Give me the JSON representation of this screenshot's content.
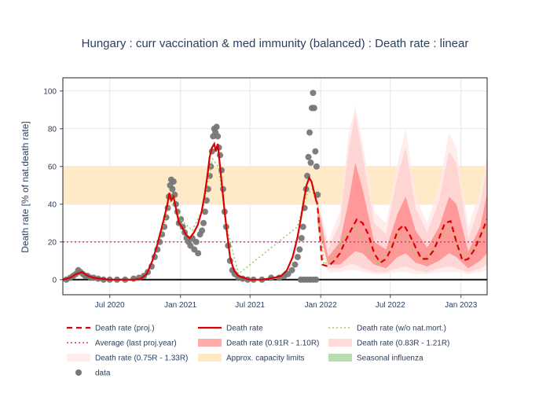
{
  "chart_data": {
    "type": "line",
    "title": "Hungary : curr vaccination & med immunity (balanced) : Death rate : linear",
    "ylabel": "Death rate [% of nat.death rate]",
    "xlabel": "",
    "ylim": [
      -8,
      107
    ],
    "xlim": [
      "2020-03-01",
      "2023-03-10"
    ],
    "y_ticks": [
      0,
      20,
      40,
      60,
      80,
      100
    ],
    "x_ticks": [
      {
        "date": "2020-07-01",
        "label": "Jul 2020"
      },
      {
        "date": "2021-01-01",
        "label": "Jan 2021"
      },
      {
        "date": "2021-07-01",
        "label": "Jul 2021"
      },
      {
        "date": "2022-01-01",
        "label": "Jan 2022"
      },
      {
        "date": "2022-07-01",
        "label": "Jul 2022"
      },
      {
        "date": "2023-01-01",
        "label": "Jan 2023"
      }
    ],
    "grid": true,
    "legend_position": "bottom",
    "capacity_band": [
      40,
      60
    ],
    "average_last_proj_year": 20,
    "colors": {
      "proj": "#dd0000",
      "death_rate": "#dd0000",
      "wo_natmort": "#99cc66",
      "average": "#dd3377",
      "band_inner": "#ff6666",
      "band_mid": "#ffcccc",
      "band_outer": "#ffe8e8",
      "capacity": "#ffe8c2",
      "influenza": "#b9ddb0",
      "data": "#777777"
    },
    "series": [
      {
        "name": "Death rate",
        "type": "line",
        "x": [
          "2020-03-01",
          "2020-03-20",
          "2020-04-05",
          "2020-04-20",
          "2020-05-05",
          "2020-05-20",
          "2020-06-10",
          "2020-07-01",
          "2020-08-01",
          "2020-09-01",
          "2020-09-20",
          "2020-10-05",
          "2020-10-20",
          "2020-11-01",
          "2020-11-10",
          "2020-11-20",
          "2020-11-28",
          "2020-12-03",
          "2020-12-08",
          "2020-12-14",
          "2020-12-20",
          "2020-12-28",
          "2021-01-05",
          "2021-01-15",
          "2021-01-25",
          "2021-02-05",
          "2021-02-15",
          "2021-02-25",
          "2021-03-05",
          "2021-03-12",
          "2021-03-18",
          "2021-03-24",
          "2021-03-30",
          "2021-04-03",
          "2021-04-08",
          "2021-04-12",
          "2021-04-18",
          "2021-04-25",
          "2021-05-02",
          "2021-05-10",
          "2021-05-20",
          "2021-06-01",
          "2021-06-15",
          "2021-07-01",
          "2021-08-01",
          "2021-09-01",
          "2021-09-20",
          "2021-10-05",
          "2021-10-20",
          "2021-11-01",
          "2021-11-10",
          "2021-11-18",
          "2021-11-25",
          "2021-12-02",
          "2021-12-08",
          "2021-12-14",
          "2021-12-20",
          "2021-12-24"
        ],
        "y": [
          0,
          1,
          3,
          4,
          2,
          1,
          0.5,
          0,
          0,
          0,
          0.5,
          3,
          10,
          18,
          25,
          33,
          40,
          46,
          42,
          44,
          38,
          30,
          28,
          24,
          22,
          25,
          29,
          36,
          45,
          55,
          65,
          70,
          72,
          68,
          72,
          64,
          52,
          38,
          25,
          12,
          5,
          2,
          1,
          0,
          0,
          1,
          2,
          5,
          12,
          22,
          32,
          42,
          50,
          54,
          52,
          47,
          42,
          40
        ]
      },
      {
        "name": "Death rate (proj.)",
        "type": "dashed",
        "x": [
          "2021-12-24",
          "2022-01-05",
          "2022-01-20",
          "2022-02-05",
          "2022-02-20",
          "2022-03-05",
          "2022-03-20",
          "2022-04-05",
          "2022-04-20",
          "2022-05-05",
          "2022-05-20",
          "2022-06-05",
          "2022-06-20",
          "2022-07-05",
          "2022-07-20",
          "2022-08-05",
          "2022-08-20",
          "2022-09-05",
          "2022-09-20",
          "2022-10-05",
          "2022-10-20",
          "2022-11-05",
          "2022-11-20",
          "2022-12-05",
          "2022-12-20",
          "2023-01-05",
          "2023-01-20",
          "2023-02-05",
          "2023-02-20",
          "2023-03-10"
        ],
        "y": [
          38,
          8,
          7,
          10,
          14,
          20,
          26,
          32,
          30,
          24,
          14,
          9,
          11,
          17,
          26,
          29,
          24,
          17,
          11,
          11,
          15,
          22,
          30,
          31,
          20,
          10,
          11,
          16,
          23,
          32
        ]
      },
      {
        "name": "Death rate (w/o nat.mort.)",
        "type": "dotted",
        "x": [
          "2020-11-10",
          "2020-12-01",
          "2020-12-15",
          "2021-01-01",
          "2021-02-01",
          "2021-03-01",
          "2021-03-25",
          "2021-04-10",
          "2021-05-01",
          "2021-06-01",
          "2021-11-01",
          "2021-11-25",
          "2021-12-10",
          "2021-12-24",
          "2022-01-10",
          "2022-02-01",
          "2022-03-01",
          "2022-04-01",
          "2022-05-01",
          "2022-06-01",
          "2022-07-01",
          "2022-08-01",
          "2022-09-01",
          "2022-10-01",
          "2022-11-01",
          "2022-12-01",
          "2023-01-01",
          "2023-02-01",
          "2023-03-10"
        ],
        "y": [
          22,
          38,
          40,
          32,
          26,
          38,
          64,
          60,
          28,
          3,
          28,
          45,
          48,
          38,
          8,
          12,
          22,
          28,
          16,
          8,
          18,
          24,
          14,
          10,
          20,
          28,
          12,
          16,
          28
        ]
      },
      {
        "name": "Average (last proj.year)",
        "type": "dotted",
        "x": [
          "2020-03-01",
          "2023-03-10"
        ],
        "y": [
          20,
          20
        ]
      },
      {
        "name": "Death rate (0.91R - 1.10R)",
        "type": "band",
        "x": [
          "2021-12-24",
          "2022-01-20",
          "2022-02-20",
          "2022-03-15",
          "2022-04-01",
          "2022-04-20",
          "2022-05-20",
          "2022-06-20",
          "2022-07-20",
          "2022-08-10",
          "2022-09-05",
          "2022-10-05",
          "2022-11-05",
          "2022-12-01",
          "2022-12-20",
          "2023-01-20",
          "2023-02-20",
          "2023-03-10"
        ],
        "low": [
          30,
          8,
          8,
          12,
          15,
          14,
          8,
          6,
          12,
          14,
          9,
          7,
          10,
          14,
          12,
          6,
          10,
          14
        ],
        "high": [
          40,
          12,
          20,
          42,
          62,
          48,
          20,
          16,
          35,
          44,
          26,
          17,
          28,
          44,
          40,
          15,
          28,
          46
        ]
      },
      {
        "name": "Death rate (0.83R - 1.21R)",
        "type": "band",
        "x": [
          "2021-12-24",
          "2022-01-20",
          "2022-02-20",
          "2022-03-15",
          "2022-04-01",
          "2022-04-20",
          "2022-05-20",
          "2022-06-20",
          "2022-07-20",
          "2022-08-10",
          "2022-09-05",
          "2022-10-05",
          "2022-11-05",
          "2022-12-01",
          "2022-12-20",
          "2023-01-20",
          "2023-02-20",
          "2023-03-10"
        ],
        "low": [
          28,
          6,
          6,
          8,
          8,
          6,
          4,
          4,
          6,
          7,
          5,
          4,
          6,
          7,
          6,
          4,
          6,
          8
        ],
        "high": [
          42,
          16,
          30,
          70,
          88,
          66,
          30,
          24,
          55,
          70,
          38,
          25,
          42,
          68,
          62,
          22,
          40,
          60
        ]
      },
      {
        "name": "Death rate (0.75R - 1.33R)",
        "type": "band",
        "x": [
          "2021-12-24",
          "2022-01-20",
          "2022-02-20",
          "2022-03-15",
          "2022-04-01",
          "2022-04-20",
          "2022-05-20",
          "2022-06-20",
          "2022-07-20",
          "2022-08-10",
          "2022-09-05",
          "2022-10-05",
          "2022-11-05",
          "2022-12-01",
          "2022-12-20",
          "2023-01-20",
          "2023-02-20",
          "2023-03-10"
        ],
        "low": [
          26,
          4,
          4,
          5,
          5,
          4,
          3,
          3,
          4,
          4,
          3,
          3,
          4,
          4,
          4,
          3,
          4,
          5
        ],
        "high": [
          44,
          20,
          36,
          78,
          92,
          72,
          36,
          30,
          62,
          80,
          44,
          30,
          50,
          78,
          70,
          28,
          48,
          66
        ]
      },
      {
        "name": "Approx. capacity limits",
        "type": "area",
        "y": [
          40,
          60
        ]
      },
      {
        "name": "Seasonal influenza",
        "type": "area",
        "y": [
          0,
          0
        ]
      },
      {
        "name": "data",
        "type": "scatter",
        "x": [
          "2020-03-10",
          "2020-03-20",
          "2020-03-28",
          "2020-04-04",
          "2020-04-10",
          "2020-04-16",
          "2020-04-22",
          "2020-04-28",
          "2020-05-04",
          "2020-05-12",
          "2020-05-20",
          "2020-06-01",
          "2020-06-15",
          "2020-07-01",
          "2020-07-20",
          "2020-08-10",
          "2020-09-01",
          "2020-09-15",
          "2020-09-28",
          "2020-10-08",
          "2020-10-18",
          "2020-10-26",
          "2020-11-02",
          "2020-11-08",
          "2020-11-14",
          "2020-11-20",
          "2020-11-25",
          "2020-11-29",
          "2020-12-02",
          "2020-12-05",
          "2020-12-08",
          "2020-12-11",
          "2020-12-14",
          "2020-12-17",
          "2020-12-20",
          "2020-12-24",
          "2020-12-28",
          "2021-01-02",
          "2021-01-07",
          "2021-01-12",
          "2021-01-17",
          "2021-01-22",
          "2021-01-27",
          "2021-02-01",
          "2021-02-06",
          "2021-02-11",
          "2021-02-16",
          "2021-02-21",
          "2021-02-26",
          "2021-03-02",
          "2021-03-06",
          "2021-03-10",
          "2021-03-14",
          "2021-03-18",
          "2021-03-21",
          "2021-03-24",
          "2021-03-27",
          "2021-03-30",
          "2021-04-02",
          "2021-04-05",
          "2021-04-08",
          "2021-04-11",
          "2021-04-14",
          "2021-04-18",
          "2021-04-22",
          "2021-04-26",
          "2021-04-30",
          "2021-05-05",
          "2021-05-10",
          "2021-05-16",
          "2021-05-22",
          "2021-06-01",
          "2021-06-12",
          "2021-06-25",
          "2021-07-10",
          "2021-08-01",
          "2021-08-25",
          "2021-09-15",
          "2021-09-28",
          "2021-10-08",
          "2021-10-18",
          "2021-10-26",
          "2021-11-02",
          "2021-11-07",
          "2021-11-12",
          "2021-11-16",
          "2021-11-20",
          "2021-11-24",
          "2021-11-27",
          "2021-11-30",
          "2021-12-03",
          "2021-12-06",
          "2021-12-09",
          "2021-12-12",
          "2021-12-15",
          "2021-12-18",
          "2021-12-21",
          "2021-12-24",
          "2021-11-10",
          "2021-11-18",
          "2021-11-26",
          "2021-12-04",
          "2021-12-12",
          "2021-12-20"
        ],
        "y": [
          0,
          1,
          2,
          3,
          5,
          4,
          3,
          2,
          2,
          1,
          1,
          0.5,
          0,
          0,
          0,
          0,
          0.5,
          1,
          2,
          4,
          7,
          12,
          16,
          20,
          24,
          28,
          33,
          38,
          44,
          50,
          53,
          48,
          52,
          45,
          40,
          36,
          30,
          32,
          28,
          25,
          22,
          20,
          18,
          22,
          16,
          20,
          14,
          24,
          26,
          30,
          36,
          42,
          48,
          55,
          60,
          68,
          76,
          80,
          78,
          81,
          76,
          70,
          66,
          58,
          48,
          36,
          28,
          18,
          10,
          5,
          3,
          1,
          0.5,
          0,
          0,
          0,
          1,
          1,
          2,
          3,
          5,
          8,
          12,
          16,
          22,
          28,
          38,
          48,
          55,
          65,
          78,
          62,
          91,
          99,
          91,
          68,
          60,
          45,
          0,
          0,
          0,
          0,
          0,
          0
        ]
      }
    ]
  }
}
